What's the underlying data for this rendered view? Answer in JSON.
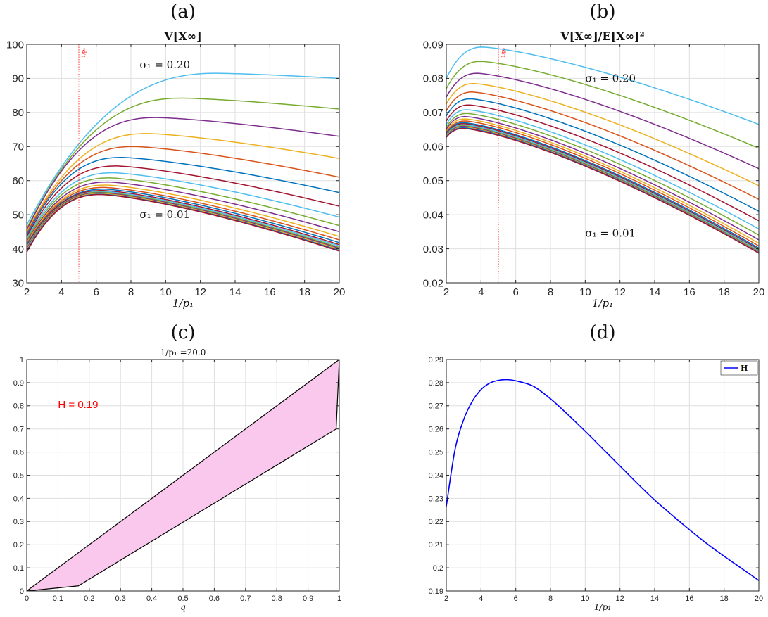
{
  "chart_data": [
    {
      "panel_label": "(a)",
      "type": "line",
      "title": "V[X∞]",
      "xlabel": "1/p₁",
      "ylabel": "",
      "xlim": [
        2,
        20
      ],
      "ylim": [
        30,
        100
      ],
      "xticks": [
        2,
        4,
        6,
        8,
        10,
        12,
        14,
        16,
        18,
        20
      ],
      "yticks": [
        30,
        40,
        50,
        60,
        70,
        80,
        90,
        100
      ],
      "xtick_labels": [
        "2",
        "4",
        "6",
        "8",
        "10",
        "12",
        "14",
        "16",
        "18",
        "20"
      ],
      "ytick_labels": [
        "30",
        "40",
        "50",
        "60",
        "70",
        "80",
        "90",
        "100"
      ],
      "grid": true,
      "vline": {
        "x": 5,
        "label": "1/p₂",
        "color": "#ff0000"
      },
      "annotations": [
        {
          "text": "σ₁ = 0.20",
          "x": 8.5,
          "y": 93
        },
        {
          "text": "σ₁ = 0.01",
          "x": 8.5,
          "y": 49
        }
      ],
      "series": [
        {
          "color": "#4dbeee",
          "start": 47,
          "peak_x": 13.0,
          "peak": 91.5,
          "end": 90.0
        },
        {
          "color": "#77ac30",
          "start": 46,
          "peak_x": 11.0,
          "peak": 84.2,
          "end": 81.0
        },
        {
          "color": "#7e2f8e",
          "start": 45.5,
          "peak_x": 9.5,
          "peak": 78.5,
          "end": 73.0
        },
        {
          "color": "#edb120",
          "start": 45,
          "peak_x": 9.0,
          "peak": 73.8,
          "end": 66.5
        },
        {
          "color": "#d95319",
          "start": 44.5,
          "peak_x": 8.2,
          "peak": 70.0,
          "end": 61.0
        },
        {
          "color": "#0072bd",
          "start": 44,
          "peak_x": 7.5,
          "peak": 66.8,
          "end": 56.5
        },
        {
          "color": "#a2142f",
          "start": 43.5,
          "peak_x": 7.2,
          "peak": 64.3,
          "end": 52.5
        },
        {
          "color": "#4dbeee",
          "start": 43,
          "peak_x": 7.0,
          "peak": 62.3,
          "end": 49.3
        },
        {
          "color": "#77ac30",
          "start": 42.5,
          "peak_x": 6.8,
          "peak": 60.8,
          "end": 46.8
        },
        {
          "color": "#7e2f8e",
          "start": 42,
          "peak_x": 6.7,
          "peak": 59.6,
          "end": 45.0
        },
        {
          "color": "#edb120",
          "start": 41.7,
          "peak_x": 6.6,
          "peak": 58.7,
          "end": 43.6
        },
        {
          "color": "#d95319",
          "start": 41.4,
          "peak_x": 6.5,
          "peak": 58.0,
          "end": 42.6
        },
        {
          "color": "#0072bd",
          "start": 41.1,
          "peak_x": 6.5,
          "peak": 57.5,
          "end": 41.8
        },
        {
          "color": "#a2142f",
          "start": 40.8,
          "peak_x": 6.4,
          "peak": 57.1,
          "end": 41.2
        },
        {
          "color": "#4dbeee",
          "start": 40.5,
          "peak_x": 6.4,
          "peak": 56.8,
          "end": 40.8
        },
        {
          "color": "#77ac30",
          "start": 40.2,
          "peak_x": 6.3,
          "peak": 56.6,
          "end": 40.4
        },
        {
          "color": "#7e2f8e",
          "start": 39.9,
          "peak_x": 6.3,
          "peak": 56.4,
          "end": 40.1
        },
        {
          "color": "#edb120",
          "start": 39.6,
          "peak_x": 6.3,
          "peak": 56.2,
          "end": 39.8
        },
        {
          "color": "#0072bd",
          "start": 39.3,
          "peak_x": 6.3,
          "peak": 56.0,
          "end": 39.5
        },
        {
          "color": "#a2142f",
          "start": 39.0,
          "peak_x": 6.3,
          "peak": 55.9,
          "end": 39.3
        }
      ]
    },
    {
      "panel_label": "(b)",
      "type": "line",
      "title": "V[X∞]/E[X∞]²",
      "xlabel": "1/p₁",
      "ylabel": "",
      "xlim": [
        2,
        20
      ],
      "ylim": [
        0.02,
        0.09
      ],
      "xticks": [
        2,
        4,
        6,
        8,
        10,
        12,
        14,
        16,
        18,
        20
      ],
      "yticks": [
        0.02,
        0.03,
        0.04,
        0.05,
        0.06,
        0.07,
        0.08,
        0.09
      ],
      "xtick_labels": [
        "2",
        "4",
        "6",
        "8",
        "10",
        "12",
        "14",
        "16",
        "18",
        "20"
      ],
      "ytick_labels": [
        "0.02",
        "0.03",
        "0.04",
        "0.05",
        "0.06",
        "0.07",
        "0.08",
        "0.09"
      ],
      "grid": true,
      "vline": {
        "x": 5,
        "label": "1/p₂",
        "color": "#ff0000"
      },
      "annotations": [
        {
          "text": "σ₁ = 0.20",
          "x": 10,
          "y": 0.079
        },
        {
          "text": "σ₁ = 0.01",
          "x": 10,
          "y": 0.0335
        }
      ],
      "series": [
        {
          "color": "#4dbeee",
          "start": 0.08,
          "peak_x": 4.1,
          "peak": 0.0892,
          "end": 0.0665
        },
        {
          "color": "#77ac30",
          "start": 0.077,
          "peak_x": 4.0,
          "peak": 0.085,
          "end": 0.0595
        },
        {
          "color": "#7e2f8e",
          "start": 0.0745,
          "peak_x": 3.8,
          "peak": 0.0815,
          "end": 0.0535
        },
        {
          "color": "#edb120",
          "start": 0.0725,
          "peak_x": 3.6,
          "peak": 0.0785,
          "end": 0.0485
        },
        {
          "color": "#d95319",
          "start": 0.0705,
          "peak_x": 3.5,
          "peak": 0.076,
          "end": 0.0445
        },
        {
          "color": "#0072bd",
          "start": 0.069,
          "peak_x": 3.4,
          "peak": 0.074,
          "end": 0.041
        },
        {
          "color": "#a2142f",
          "start": 0.0675,
          "peak_x": 3.3,
          "peak": 0.0722,
          "end": 0.0382
        },
        {
          "color": "#4dbeee",
          "start": 0.0665,
          "peak_x": 3.2,
          "peak": 0.0708,
          "end": 0.0358
        },
        {
          "color": "#77ac30",
          "start": 0.0657,
          "peak_x": 3.2,
          "peak": 0.0697,
          "end": 0.034
        },
        {
          "color": "#7e2f8e",
          "start": 0.0651,
          "peak_x": 3.1,
          "peak": 0.0688,
          "end": 0.0326
        },
        {
          "color": "#edb120",
          "start": 0.0646,
          "peak_x": 3.1,
          "peak": 0.0681,
          "end": 0.0316
        },
        {
          "color": "#d95319",
          "start": 0.0642,
          "peak_x": 3.1,
          "peak": 0.0675,
          "end": 0.0308
        },
        {
          "color": "#0072bd",
          "start": 0.0639,
          "peak_x": 3.0,
          "peak": 0.067,
          "end": 0.0302
        },
        {
          "color": "#a2142f",
          "start": 0.0636,
          "peak_x": 3.0,
          "peak": 0.0667,
          "end": 0.0298
        },
        {
          "color": "#4dbeee",
          "start": 0.0634,
          "peak_x": 3.0,
          "peak": 0.0664,
          "end": 0.0295
        },
        {
          "color": "#77ac30",
          "start": 0.0632,
          "peak_x": 3.0,
          "peak": 0.0661,
          "end": 0.0292
        },
        {
          "color": "#7e2f8e",
          "start": 0.063,
          "peak_x": 3.0,
          "peak": 0.0659,
          "end": 0.029
        },
        {
          "color": "#edb120",
          "start": 0.0629,
          "peak_x": 3.0,
          "peak": 0.0657,
          "end": 0.0289
        },
        {
          "color": "#0072bd",
          "start": 0.0628,
          "peak_x": 3.0,
          "peak": 0.0655,
          "end": 0.0288
        },
        {
          "color": "#a2142f",
          "start": 0.0627,
          "peak_x": 3.0,
          "peak": 0.0653,
          "end": 0.0287
        }
      ]
    },
    {
      "panel_label": "(c)",
      "type": "area",
      "title": "1/p₁ =20.0",
      "xlabel": "q",
      "ylabel": "",
      "xlim": [
        0,
        1
      ],
      "ylim": [
        0,
        1
      ],
      "xticks": [
        0,
        0.1,
        0.2,
        0.3,
        0.4,
        0.5,
        0.6,
        0.7,
        0.8,
        0.9,
        1
      ],
      "yticks": [
        0,
        0.1,
        0.2,
        0.3,
        0.4,
        0.5,
        0.6,
        0.7,
        0.8,
        0.9,
        1
      ],
      "xtick_labels": [
        "0",
        "0.1",
        "0.2",
        "0.3",
        "0.4",
        "0.5",
        "0.6",
        "0.7",
        "0.8",
        "0.9",
        "1"
      ],
      "ytick_labels": [
        "0",
        "0.1",
        "0.2",
        "0.3",
        "0.4",
        "0.5",
        "0.6",
        "0.7",
        "0.8",
        "0.9",
        "1"
      ],
      "grid": true,
      "fill_color": "#f9c8ec",
      "upper": {
        "x": [
          0,
          1
        ],
        "y": [
          0,
          1
        ]
      },
      "lower": {
        "x": [
          0,
          0.165,
          0.99,
          1
        ],
        "y": [
          0,
          0.022,
          0.7,
          1
        ]
      },
      "annotation": {
        "text": "H = 0.19",
        "x": 0.1,
        "y": 0.79,
        "color": "#ff0000"
      }
    },
    {
      "panel_label": "(d)",
      "type": "line",
      "title": "",
      "xlabel": "1/p₁",
      "ylabel": "",
      "xlim": [
        2,
        20
      ],
      "ylim": [
        0.19,
        0.29
      ],
      "xticks": [
        2,
        4,
        6,
        8,
        10,
        12,
        14,
        16,
        18,
        20
      ],
      "yticks": [
        0.19,
        0.2,
        0.21,
        0.22,
        0.23,
        0.24,
        0.25,
        0.26,
        0.27,
        0.28,
        0.29
      ],
      "xtick_labels": [
        "2",
        "4",
        "6",
        "8",
        "10",
        "12",
        "14",
        "16",
        "18",
        "20"
      ],
      "ytick_labels": [
        "0.19",
        "0.2",
        "0.21",
        "0.22",
        "0.23",
        "0.24",
        "0.25",
        "0.26",
        "0.27",
        "0.28",
        "0.29"
      ],
      "grid": true,
      "legend": {
        "entries": [
          "H"
        ],
        "placement": "top-right"
      },
      "series": [
        {
          "name": "H",
          "color": "#0000ff",
          "x": [
            2,
            2.5,
            3,
            3.5,
            4,
            4.5,
            5,
            5.5,
            6,
            7,
            8,
            9,
            10,
            11,
            12,
            13,
            14,
            15,
            16,
            17,
            18,
            19,
            20
          ],
          "y": [
            0.2265,
            0.251,
            0.264,
            0.272,
            0.277,
            0.2798,
            0.281,
            0.2813,
            0.2808,
            0.2785,
            0.273,
            0.2662,
            0.259,
            0.2515,
            0.244,
            0.2365,
            0.2293,
            0.2228,
            0.2165,
            0.2105,
            0.205,
            0.1998,
            0.1945
          ]
        }
      ]
    }
  ]
}
